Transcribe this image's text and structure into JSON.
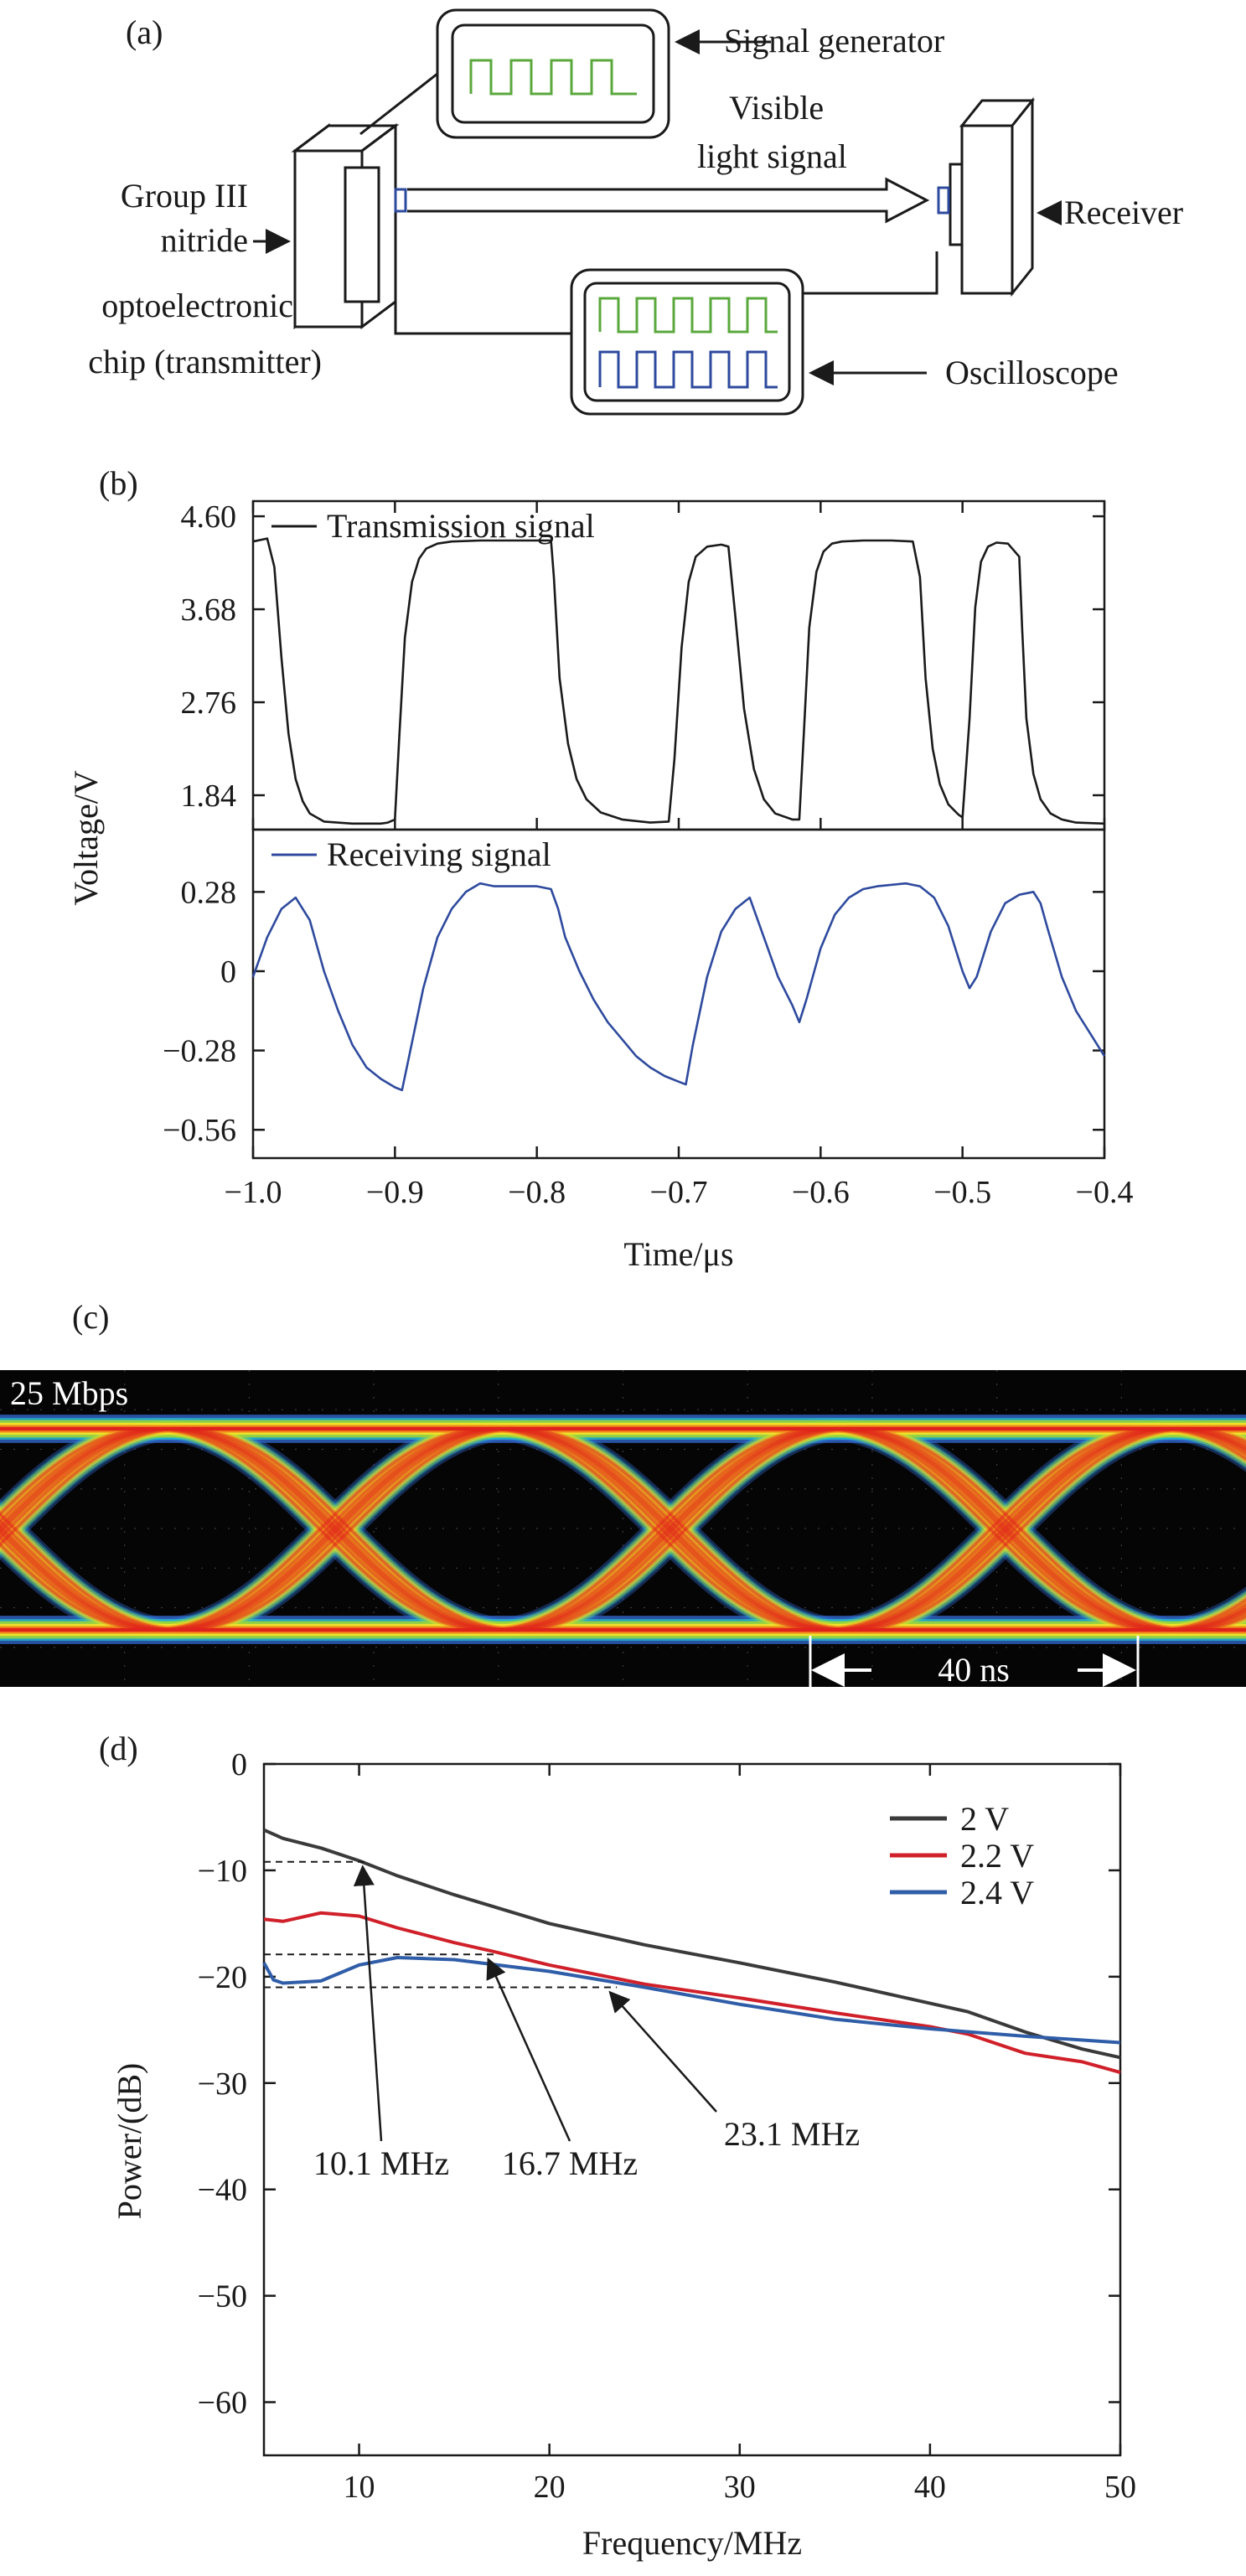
{
  "panel_a": {
    "label": "(a)",
    "signal_generator": "Signal generator",
    "visible_light_line1": "Visible",
    "visible_light_line2": "light signal",
    "receiver": "Receiver",
    "transmitter_line1": "Group III",
    "transmitter_line2": "nitride",
    "transmitter_line3": "optoelectronic",
    "transmitter_line4": "chip (transmitter)",
    "oscilloscope": "Oscilloscope",
    "colors": {
      "green": "#5aa83c",
      "blue": "#2e4a9e",
      "light_blue": "#8fb3e0"
    }
  },
  "panel_b": {
    "label": "(b)",
    "ylabel": "Voltage/V",
    "xlabel": "Time/μs"
  },
  "panel_c": {
    "label": "(c)",
    "rate_text": "25 Mbps",
    "span_text": "40 ns"
  },
  "panel_d": {
    "label": "(d)",
    "ylabel": "Power/(dB)",
    "xlabel": "Frequency/MHz",
    "annotations": [
      "10.1 MHz",
      "16.7 MHz",
      "23.1 MHz"
    ]
  },
  "chart_data": [
    {
      "type": "line",
      "panel": "b-top",
      "legend": "Transmission signal",
      "color": "#1a1a1a",
      "xlim": [
        -1.0,
        -0.4
      ],
      "ylim": [
        1.5,
        4.75
      ],
      "yticks": [
        4.6,
        3.68,
        2.76,
        1.84
      ],
      "ytick_labels": [
        "4.60",
        "3.68",
        "2.76",
        "1.84"
      ],
      "x": [
        -1.0,
        -0.99,
        -0.985,
        -0.98,
        -0.975,
        -0.97,
        -0.965,
        -0.96,
        -0.95,
        -0.93,
        -0.91,
        -0.905,
        -0.9,
        -0.897,
        -0.893,
        -0.888,
        -0.883,
        -0.878,
        -0.87,
        -0.86,
        -0.84,
        -0.8,
        -0.79,
        -0.788,
        -0.784,
        -0.778,
        -0.772,
        -0.765,
        -0.755,
        -0.74,
        -0.72,
        -0.707,
        -0.703,
        -0.698,
        -0.693,
        -0.688,
        -0.68,
        -0.67,
        -0.665,
        -0.66,
        -0.654,
        -0.647,
        -0.64,
        -0.632,
        -0.62,
        -0.615,
        -0.612,
        -0.608,
        -0.603,
        -0.598,
        -0.592,
        -0.585,
        -0.57,
        -0.55,
        -0.535,
        -0.53,
        -0.526,
        -0.521,
        -0.516,
        -0.51,
        -0.503,
        -0.5,
        -0.495,
        -0.491,
        -0.487,
        -0.482,
        -0.476,
        -0.468,
        -0.46,
        -0.458,
        -0.455,
        -0.45,
        -0.445,
        -0.438,
        -0.43,
        -0.42,
        -0.4
      ],
      "values": [
        4.35,
        4.38,
        4.1,
        3.2,
        2.45,
        2.0,
        1.78,
        1.66,
        1.58,
        1.56,
        1.56,
        1.57,
        1.6,
        2.4,
        3.4,
        3.95,
        4.18,
        4.28,
        4.33,
        4.35,
        4.36,
        4.36,
        4.36,
        4.0,
        3.0,
        2.35,
        2.0,
        1.8,
        1.67,
        1.6,
        1.57,
        1.58,
        2.2,
        3.3,
        3.95,
        4.2,
        4.3,
        4.32,
        4.3,
        3.6,
        2.7,
        2.1,
        1.8,
        1.66,
        1.6,
        1.6,
        2.4,
        3.5,
        4.05,
        4.25,
        4.33,
        4.35,
        4.36,
        4.36,
        4.35,
        4.0,
        3.0,
        2.3,
        1.95,
        1.75,
        1.65,
        1.62,
        2.6,
        3.7,
        4.15,
        4.3,
        4.34,
        4.33,
        4.2,
        3.5,
        2.6,
        2.05,
        1.8,
        1.66,
        1.6,
        1.57,
        1.56
      ]
    },
    {
      "type": "line",
      "panel": "b-bottom",
      "legend": "Receiving signal",
      "color": "#2e4a9e",
      "xlim": [
        -1.0,
        -0.4
      ],
      "ylim": [
        -0.66,
        0.5
      ],
      "yticks": [
        0.28,
        0,
        -0.28,
        -0.56
      ],
      "ytick_labels": [
        "0.28",
        "0",
        "−0.28",
        "−0.56"
      ],
      "x": [
        -1.0,
        -0.99,
        -0.98,
        -0.97,
        -0.96,
        -0.95,
        -0.94,
        -0.93,
        -0.92,
        -0.91,
        -0.9,
        -0.895,
        -0.89,
        -0.88,
        -0.87,
        -0.86,
        -0.85,
        -0.84,
        -0.83,
        -0.8,
        -0.79,
        -0.785,
        -0.78,
        -0.77,
        -0.76,
        -0.75,
        -0.74,
        -0.73,
        -0.72,
        -0.71,
        -0.7,
        -0.695,
        -0.69,
        -0.68,
        -0.67,
        -0.66,
        -0.65,
        -0.64,
        -0.63,
        -0.62,
        -0.615,
        -0.61,
        -0.6,
        -0.59,
        -0.58,
        -0.57,
        -0.56,
        -0.54,
        -0.53,
        -0.52,
        -0.51,
        -0.5,
        -0.495,
        -0.49,
        -0.48,
        -0.47,
        -0.46,
        -0.45,
        -0.445,
        -0.44,
        -0.43,
        -0.42,
        -0.41,
        -0.4
      ],
      "values": [
        -0.02,
        0.12,
        0.22,
        0.26,
        0.18,
        0.0,
        -0.14,
        -0.26,
        -0.34,
        -0.38,
        -0.41,
        -0.42,
        -0.3,
        -0.06,
        0.12,
        0.22,
        0.28,
        0.31,
        0.3,
        0.3,
        0.29,
        0.22,
        0.12,
        0.0,
        -0.1,
        -0.18,
        -0.24,
        -0.3,
        -0.34,
        -0.37,
        -0.39,
        -0.4,
        -0.26,
        -0.02,
        0.14,
        0.22,
        0.26,
        0.12,
        -0.02,
        -0.12,
        -0.18,
        -0.1,
        0.08,
        0.2,
        0.26,
        0.29,
        0.3,
        0.31,
        0.3,
        0.26,
        0.16,
        0.0,
        -0.06,
        -0.02,
        0.14,
        0.24,
        0.27,
        0.28,
        0.24,
        0.15,
        -0.02,
        -0.14,
        -0.22,
        -0.3
      ]
    },
    {
      "type": "line",
      "panel": "d",
      "xlim": [
        5,
        50
      ],
      "ylim": [
        -65,
        0
      ],
      "xticks": [
        10,
        20,
        30,
        40,
        50
      ],
      "yticks": [
        0,
        -10,
        -20,
        -30,
        -40,
        -50,
        -60
      ],
      "ytick_labels": [
        "0",
        "−10",
        "−20",
        "−30",
        "−40",
        "−50",
        "−60"
      ],
      "series": [
        {
          "name": "2 V",
          "color": "#3a3a3a",
          "x": [
            5,
            6,
            8,
            10,
            12,
            15,
            20,
            25,
            30,
            35,
            40,
            42,
            45,
            48,
            50
          ],
          "values": [
            -6.2,
            -7.0,
            -7.9,
            -9.1,
            -10.5,
            -12.3,
            -15.0,
            -17.0,
            -18.7,
            -20.5,
            -22.5,
            -23.3,
            -25.2,
            -26.8,
            -27.6
          ]
        },
        {
          "name": "2.2 V",
          "color": "#d0202a",
          "x": [
            5,
            6,
            8,
            10,
            12,
            15,
            17,
            20,
            25,
            30,
            35,
            40,
            42,
            45,
            48,
            50
          ],
          "values": [
            -14.6,
            -14.8,
            -14.0,
            -14.3,
            -15.4,
            -16.8,
            -17.6,
            -18.9,
            -20.7,
            -22.0,
            -23.4,
            -24.7,
            -25.4,
            -27.2,
            -28.0,
            -29.0
          ]
        },
        {
          "name": "2.4 V",
          "color": "#2f5da8",
          "x": [
            5,
            5.5,
            6,
            8,
            10,
            12,
            15,
            20,
            25,
            30,
            35,
            40,
            45,
            50
          ],
          "values": [
            -18.7,
            -20.3,
            -20.6,
            -20.4,
            -18.9,
            -18.2,
            -18.4,
            -19.5,
            -21.0,
            -22.6,
            -24.0,
            -24.9,
            -25.6,
            -26.2
          ]
        }
      ],
      "markers": [
        {
          "label": "10.1 MHz",
          "x": 10.1,
          "y": -9.2
        },
        {
          "label": "16.7 MHz",
          "x": 16.7,
          "y": -17.9
        },
        {
          "label": "23.1 MHz",
          "x": 23.1,
          "y": -21.0
        }
      ]
    }
  ]
}
